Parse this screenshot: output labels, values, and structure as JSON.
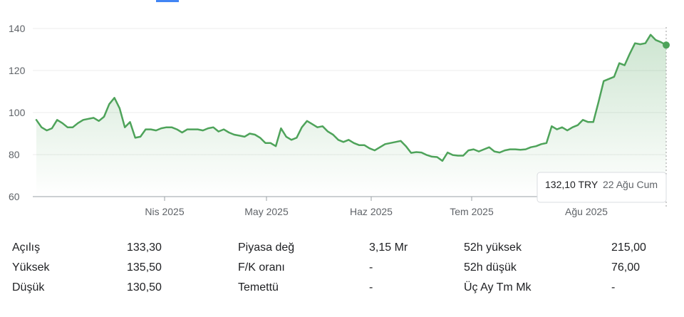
{
  "chart_data": {
    "type": "area",
    "currency": "TRY",
    "ylim": [
      60,
      140
    ],
    "y_ticks": [
      "140",
      "120",
      "100",
      "80",
      "60"
    ],
    "x_tick_labels": [
      "Nis 2025",
      "May 2025",
      "Haz 2025",
      "Tem 2025",
      "Ağu 2025"
    ],
    "line_color": "#4ea35a",
    "series": [
      {
        "values": [
          96.5,
          93,
          91.5,
          92.5,
          96.5,
          95,
          93,
          93,
          95,
          96.5,
          97,
          97.5,
          96,
          98,
          104,
          107,
          102,
          93,
          95.5,
          88,
          88.5,
          92,
          92,
          91.5,
          92.5,
          93,
          93,
          92,
          90.5,
          92,
          92,
          92,
          91.5,
          92.5,
          93,
          91,
          92,
          90.5,
          89.5,
          89,
          88.5,
          90,
          89.5,
          88,
          85.5,
          85.5,
          84,
          92.5,
          88.5,
          87,
          88,
          93,
          96,
          94.5,
          93,
          93.5,
          91,
          89.5,
          87,
          86,
          87,
          85.5,
          84.5,
          84.5,
          83,
          82,
          83.5,
          85,
          85.5,
          86,
          86.5,
          84,
          80.8,
          81.2,
          81,
          79.8,
          79,
          78.8,
          77,
          81,
          79.8,
          79.5,
          79.5,
          82,
          82.5,
          81.5,
          82.5,
          83.5,
          81.5,
          81,
          82,
          82.5,
          82.5,
          82.3,
          82.5,
          83.5,
          84,
          85,
          85.5,
          93.5,
          92,
          93,
          91.5,
          93,
          94,
          96.5,
          95.5,
          95.5,
          105,
          115,
          116,
          117,
          123.5,
          122.5,
          128,
          133,
          132.5,
          133,
          137,
          134.5,
          133.5,
          132.1
        ]
      }
    ],
    "tooltip": {
      "price": "132,10 TRY",
      "date": "22 Ağu Cum"
    }
  },
  "stats": {
    "rows": [
      [
        {
          "label": "Açılış",
          "value": "133,30"
        },
        {
          "label": "Piyasa değ",
          "value": "3,15 Mr"
        },
        {
          "label": "52h yüksek",
          "value": "215,00"
        }
      ],
      [
        {
          "label": "Yüksek",
          "value": "135,50"
        },
        {
          "label": "F/K oranı",
          "value": "-"
        },
        {
          "label": "52h düşük",
          "value": "76,00"
        }
      ],
      [
        {
          "label": "Düşük",
          "value": "130,50"
        },
        {
          "label": "Temettü",
          "value": "-"
        },
        {
          "label": "Üç Ay Tm Mk",
          "value": "-"
        }
      ]
    ]
  }
}
